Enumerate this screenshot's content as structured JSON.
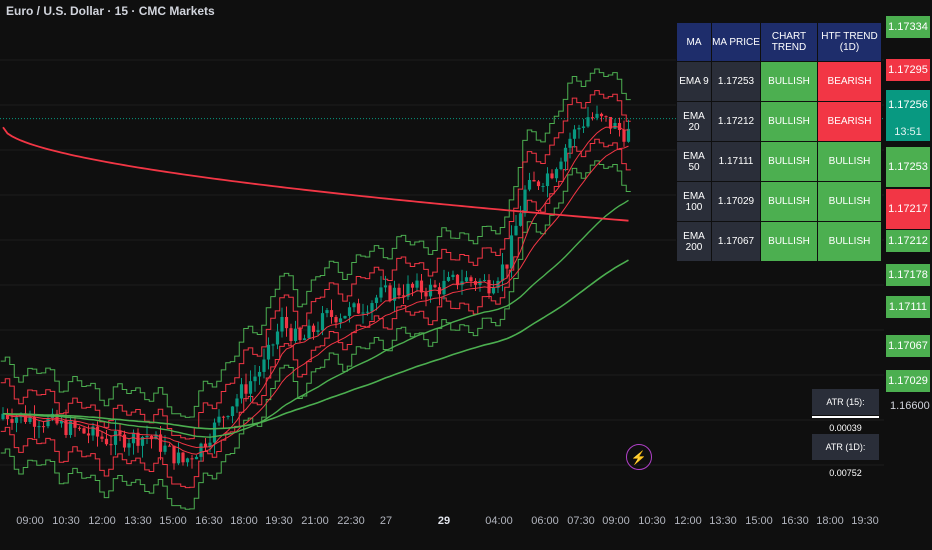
{
  "header": {
    "title": "Euro / U.S. Dollar · 15 · CMC Markets"
  },
  "colors": {
    "bull": "#4caf50",
    "bear": "#f23645",
    "up_candle": "#089981",
    "down_candle": "#f23645",
    "price_line": "#089981",
    "table_header": "#1e2d6b"
  },
  "ma_table": {
    "headers": [
      "MA",
      "MA PRICE",
      "CHART TREND",
      "HTF TREND (1D)"
    ],
    "rows": [
      {
        "ma": "EMA 9",
        "price": "1.17253",
        "trend": "BULLISH",
        "htf": "BEARISH"
      },
      {
        "ma": "EMA 20",
        "price": "1.17212",
        "trend": "BULLISH",
        "htf": "BEARISH"
      },
      {
        "ma": "EMA 50",
        "price": "1.17111",
        "trend": "BULLISH",
        "htf": "BULLISH"
      },
      {
        "ma": "EMA 100",
        "price": "1.17029",
        "trend": "BULLISH",
        "htf": "BULLISH"
      },
      {
        "ma": "EMA 200",
        "price": "1.17067",
        "trend": "BULLISH",
        "htf": "BULLISH"
      }
    ]
  },
  "price_axis": {
    "tags": [
      {
        "value": "1.17334",
        "color": "green"
      },
      {
        "value": "1.17295",
        "color": "red"
      },
      {
        "value": "1.17256",
        "color": "teal"
      },
      {
        "value": "1.17253",
        "color": "green"
      },
      {
        "value": "1.17217",
        "color": "red"
      },
      {
        "value": "1.17212",
        "color": "green"
      },
      {
        "value": "1.17178",
        "color": "green"
      },
      {
        "value": "1.17111",
        "color": "green"
      },
      {
        "value": "1.17067",
        "color": "green"
      },
      {
        "value": "1.17029",
        "color": "green"
      }
    ],
    "countdown": "13:51",
    "plain_label": "1.16600"
  },
  "atr": {
    "atr15": "ATR (15): 0.00039",
    "atr1d": "ATR (1D): 0.00752"
  },
  "chart_data": {
    "type": "candlestick",
    "title": "Euro / U.S. Dollar · 15 · CMC Markets",
    "x_tick_labels": [
      "09:00",
      "10:30",
      "12:00",
      "13:30",
      "15:00",
      "16:30",
      "18:00",
      "19:30",
      "21:00",
      "22:30",
      "27",
      "29",
      "04:00",
      "06:00",
      "07:30",
      "09:00",
      "10:30",
      "12:00",
      "13:30",
      "15:00",
      "16:30",
      "18:00",
      "19:30"
    ],
    "current_price": 1.17256,
    "ylim": [
      1.1655,
      1.1742
    ],
    "series": [
      {
        "name": "EMA 9",
        "color": "#f23645",
        "last": 1.17253
      },
      {
        "name": "EMA 20",
        "color": "#f23645",
        "last": 1.17212
      },
      {
        "name": "EMA 50",
        "color": "#4caf50",
        "last": 1.17111
      },
      {
        "name": "EMA 100",
        "color": "#4caf50",
        "last": 1.17029
      },
      {
        "name": "EMA 200",
        "color": "#f23645",
        "last": 1.17067
      }
    ],
    "close_path": [
      [
        0,
        1.1671
      ],
      [
        8,
        1.167
      ],
      [
        16,
        1.1668
      ],
      [
        24,
        1.1666
      ],
      [
        32,
        1.1667
      ],
      [
        40,
        1.1662
      ],
      [
        44,
        1.1665
      ],
      [
        50,
        1.1672
      ],
      [
        58,
        1.168
      ],
      [
        62,
        1.1688
      ],
      [
        66,
        1.1684
      ],
      [
        72,
        1.1689
      ],
      [
        78,
        1.169
      ],
      [
        84,
        1.1693
      ],
      [
        90,
        1.1694
      ],
      [
        96,
        1.1694
      ],
      [
        102,
        1.1696
      ],
      [
        108,
        1.1695
      ],
      [
        112,
        1.1699
      ],
      [
        116,
        1.1712
      ],
      [
        122,
        1.1716
      ],
      [
        126,
        1.1722
      ],
      [
        130,
        1.1726
      ],
      [
        134,
        1.1725
      ],
      [
        138,
        1.1723
      ]
    ],
    "bar_count": 140
  }
}
